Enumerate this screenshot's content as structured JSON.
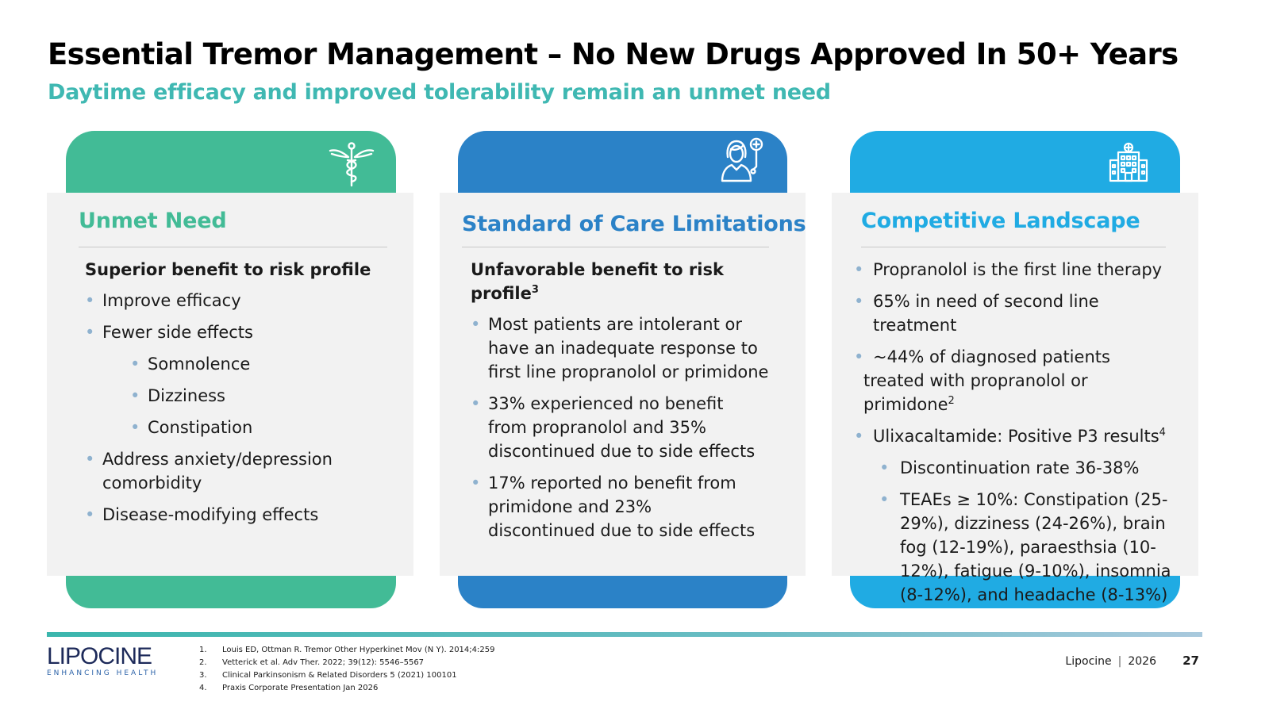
{
  "header": {
    "title": "Essential Tremor Management – No New Drugs Approved In 50+ Years",
    "subtitle": "Daytime efficacy and improved tolerability remain an unmet need"
  },
  "colors": {
    "green": "#42bb96",
    "blue": "#2b82c7",
    "cyan": "#20abe3",
    "subtitle": "#3fb8b2"
  },
  "cards": [
    {
      "icon": "caduceus-icon",
      "title": "Unmet Need",
      "subhead": "Superior benefit to risk profile",
      "bullets": [
        "Improve efficacy",
        "Fewer side effects",
        "Somnolence",
        "Dizziness",
        "Constipation",
        "Address anxiety/depression comorbidity",
        "Disease-modifying effects"
      ]
    },
    {
      "icon": "doctor-icon",
      "title": "Standard of Care Limitations",
      "subhead": "Unfavorable benefit to risk profile",
      "subhead_sup": "3",
      "bullets": [
        "Most patients are intolerant or have an inadequate response to first line propranolol or primidone",
        "33% experienced no benefit from propranolol and 35% discontinued due to side effects",
        "17% reported no benefit from primidone and 23% discontinued due to side effects"
      ]
    },
    {
      "icon": "hospital-icon",
      "title": "Competitive Landscape",
      "bullets": [
        "Propranolol is the first line therapy",
        "65% in need of second line treatment",
        "~44% of diagnosed patients treated with propranolol or primidone",
        "Ulixacaltamide: Positive P3 results",
        "Discontinuation rate 36-38%",
        "TEAEs ≥ 10%: Constipation (25-29%), dizziness (24-26%), brain fog (12-19%), paraesthsia (10-12%), fatigue (9-10%), insomnia (8-12%), and headache (8-13%)"
      ],
      "sups": {
        "b2": "2",
        "b3": "4"
      }
    }
  ],
  "footer": {
    "logo_text": "LIPOCINE",
    "logo_tagline": "ENHANCING HEALTH",
    "references": [
      {
        "num": "1.",
        "text": "Louis ED, Ottman R. Tremor Other Hyperkinet Mov (N Y). 2014;4:259"
      },
      {
        "num": "2.",
        "text": "Vetterick et al. Adv Ther. 2022; 39(12): 5546–5567"
      },
      {
        "num": "3.",
        "text": "Clinical Parkinsonism & Related Disorders 5 (2021) 100101"
      },
      {
        "num": "4.",
        "text": "Praxis Corporate Presentation Jan 2026"
      }
    ],
    "company": "Lipocine",
    "year": "2026",
    "page_number": "27"
  }
}
